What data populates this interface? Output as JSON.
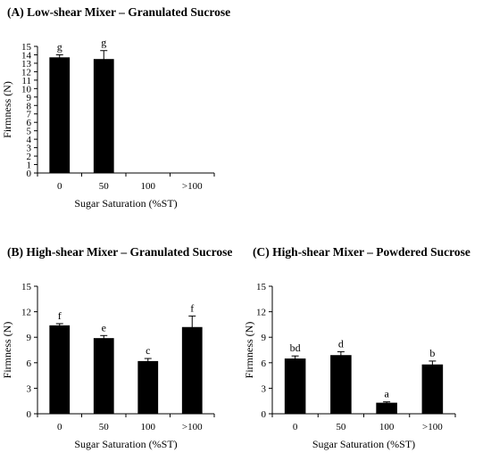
{
  "chart_data": [
    {
      "id": "A",
      "type": "bar",
      "title": "(A) Low-shear Mixer – Granulated Sucrose",
      "xlabel": "Sugar Saturation (%ST)",
      "ylabel": "Firmness (N)",
      "categories": [
        "0",
        "50",
        "100",
        ">100"
      ],
      "values": [
        13.7,
        13.5,
        null,
        null
      ],
      "errors": [
        0.3,
        1.0,
        null,
        null
      ],
      "labels": [
        "g",
        "g",
        "",
        ""
      ],
      "ylim": [
        0,
        15
      ],
      "yticks": [
        0,
        1,
        2,
        3,
        4,
        5,
        6,
        7,
        8,
        9,
        10,
        11,
        12,
        13,
        14,
        15
      ],
      "color": "#000000"
    },
    {
      "id": "B",
      "type": "bar",
      "title": "(B) High-shear Mixer – Granulated Sucrose",
      "xlabel": "Sugar Saturation (%ST)",
      "ylabel": "Firmness (N)",
      "categories": [
        "0",
        "50",
        "100",
        ">100"
      ],
      "values": [
        10.4,
        8.9,
        6.2,
        10.2
      ],
      "errors": [
        0.2,
        0.3,
        0.3,
        1.3
      ],
      "labels": [
        "f",
        "e",
        "c",
        "f"
      ],
      "ylim": [
        0,
        15
      ],
      "yticks": [
        0,
        3,
        6,
        9,
        12,
        15
      ],
      "color": "#000000"
    },
    {
      "id": "C",
      "type": "bar",
      "title": "(C) High-shear Mixer – Powdered Sucrose",
      "xlabel": "Sugar Saturation (%ST)",
      "ylabel": "Firmness (N)",
      "categories": [
        "0",
        "50",
        "100",
        ">100"
      ],
      "values": [
        6.5,
        6.9,
        1.3,
        5.8
      ],
      "errors": [
        0.3,
        0.4,
        0.1,
        0.4
      ],
      "labels": [
        "bd",
        "d",
        "a",
        "b"
      ],
      "ylim": [
        0,
        15
      ],
      "yticks": [
        0,
        3,
        6,
        9,
        12,
        15
      ],
      "color": "#000000"
    }
  ]
}
